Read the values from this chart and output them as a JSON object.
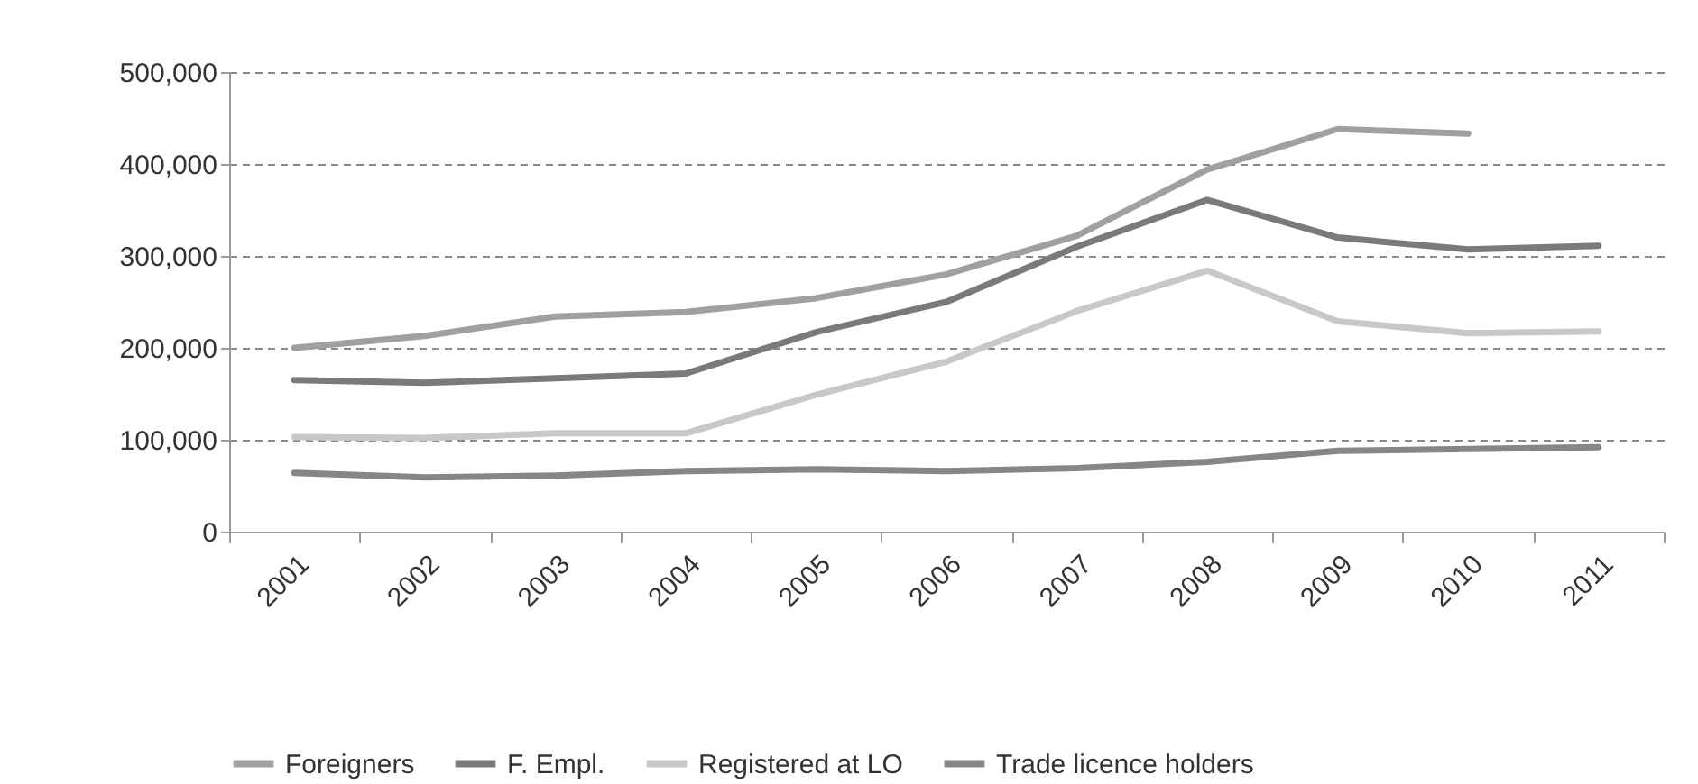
{
  "chart_data": {
    "type": "line",
    "categories": [
      "2001",
      "2002",
      "2003",
      "2004",
      "2005",
      "2006",
      "2007",
      "2008",
      "2009",
      "2010",
      "2011"
    ],
    "series": [
      {
        "name": "Foreigners",
        "color": "#a0a0a0",
        "values": [
          200000,
          213000,
          234000,
          239000,
          254000,
          280000,
          322000,
          394000,
          438000,
          433000,
          null
        ]
      },
      {
        "name": "F. Empl.",
        "color": "#7a7a7a",
        "values": [
          165000,
          162000,
          167000,
          172000,
          217000,
          250000,
          310000,
          361000,
          320000,
          307000,
          311000
        ]
      },
      {
        "name": "Registered at LO",
        "color": "#c8c8c8",
        "values": [
          103000,
          102000,
          107000,
          107000,
          149000,
          185000,
          240000,
          284000,
          229000,
          216000,
          218000
        ]
      },
      {
        "name": "Trade licence holders",
        "color": "#868686",
        "values": [
          64000,
          59000,
          61000,
          66000,
          68000,
          66000,
          69000,
          76000,
          88000,
          90000,
          92000
        ]
      }
    ],
    "ylim": [
      0,
      500000
    ],
    "yticks": [
      {
        "value": 0,
        "label": "0"
      },
      {
        "value": 100000,
        "label": "100,000"
      },
      {
        "value": 200000,
        "label": "200,000"
      },
      {
        "value": 300000,
        "label": "300,000"
      },
      {
        "value": 400000,
        "label": "400,000"
      },
      {
        "value": 500000,
        "label": "500,000"
      }
    ],
    "grid": "y",
    "legend": "bottom"
  }
}
